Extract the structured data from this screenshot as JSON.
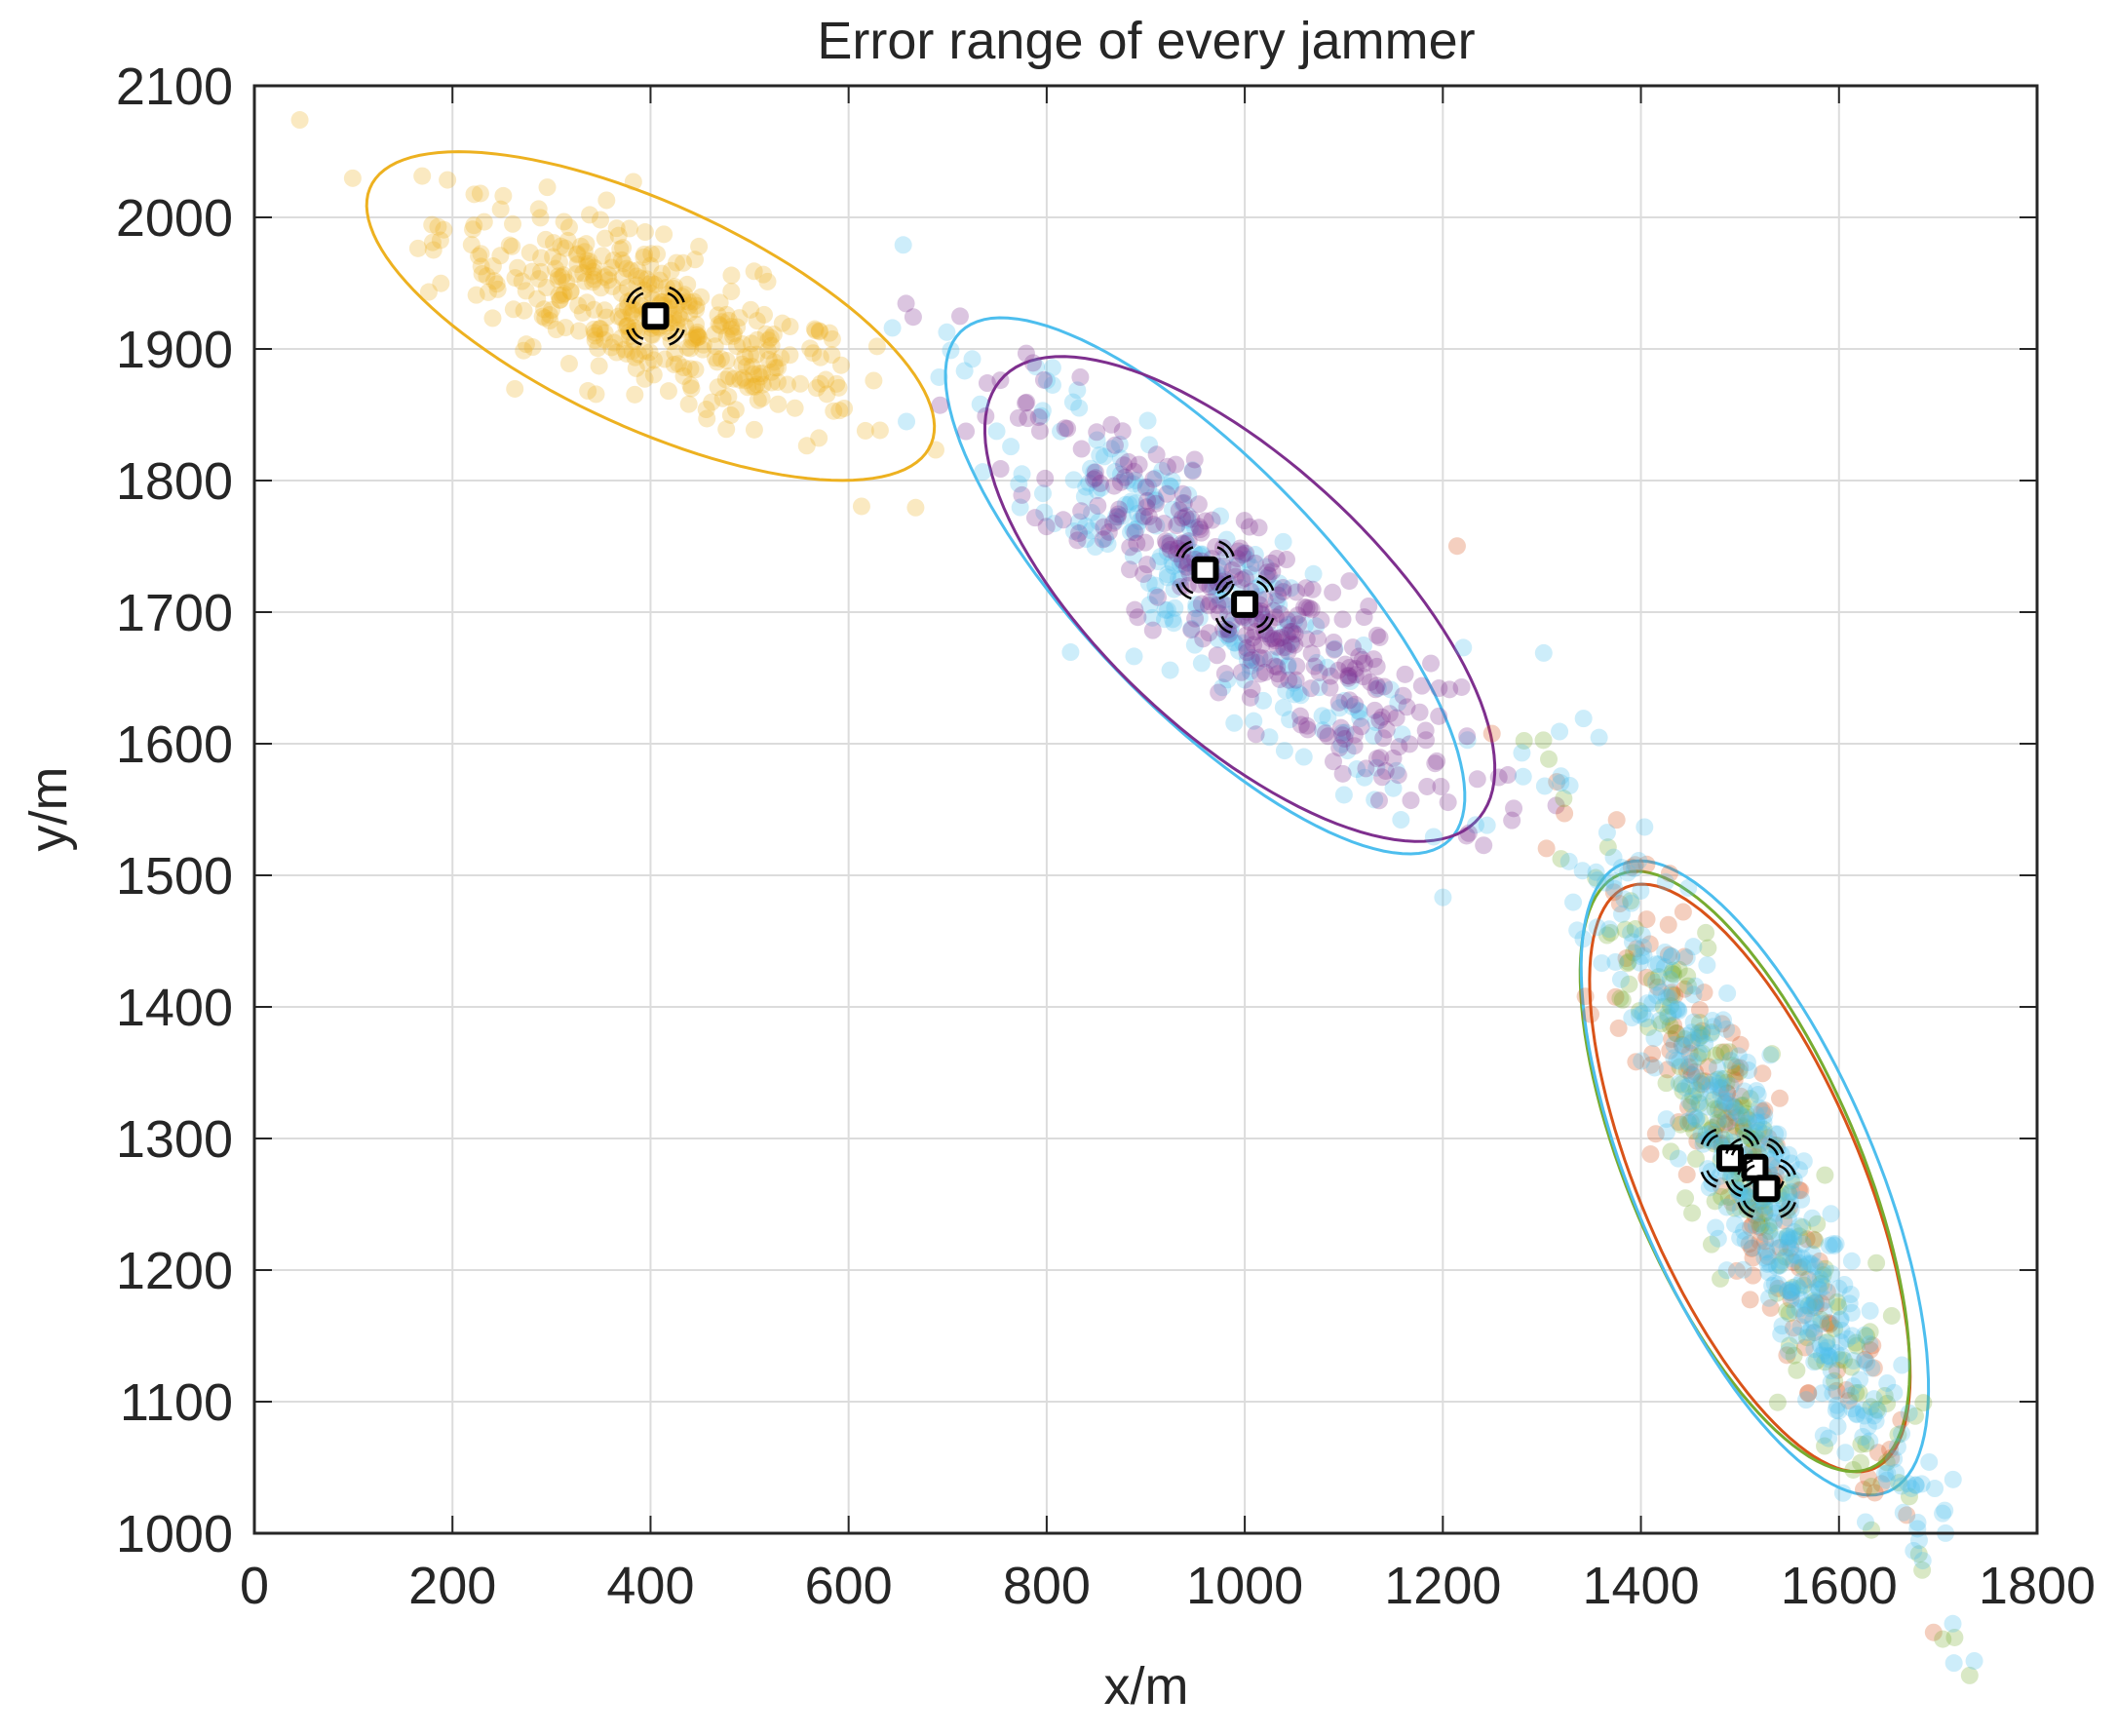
{
  "chart_data": {
    "type": "scatter",
    "title": "Error range of every jammer",
    "xlabel": "x/m",
    "ylabel": "y/m",
    "xlim": [
      0,
      1800
    ],
    "ylim": [
      1000,
      2100
    ],
    "xticks": [
      0,
      200,
      400,
      600,
      800,
      1000,
      1200,
      1400,
      1600,
      1800
    ],
    "yticks": [
      1000,
      1100,
      1200,
      1300,
      1400,
      1500,
      1600,
      1700,
      1800,
      1900,
      2000,
      2100
    ],
    "grid": true,
    "legend": "none",
    "clusters": [
      {
        "color": "#EDB120",
        "center": [
          400,
          1925
        ],
        "ellipse": {
          "a": 300,
          "b": 88,
          "angle_deg": -18
        },
        "spread": [
          110,
          28
        ],
        "n": 400
      },
      {
        "color": "#4DBEEE",
        "center": [
          960,
          1720
        ],
        "ellipse": {
          "a": 315,
          "b": 105,
          "angle_deg": -36
        },
        "spread": [
          140,
          30
        ],
        "n": 260
      },
      {
        "color": "#7E2F8E",
        "center": [
          995,
          1710
        ],
        "ellipse": {
          "a": 295,
          "b": 115,
          "angle_deg": -32
        },
        "spread": [
          135,
          30
        ],
        "n": 330
      },
      {
        "color": "#D95319",
        "center": [
          1510,
          1270
        ],
        "ellipse": {
          "a": 255,
          "b": 105,
          "angle_deg": -58
        },
        "spread": [
          150,
          24
        ],
        "n": 170
      },
      {
        "color": "#77AC30",
        "center": [
          1505,
          1275
        ],
        "ellipse": {
          "a": 260,
          "b": 110,
          "angle_deg": -58
        },
        "spread": [
          150,
          26
        ],
        "n": 200
      },
      {
        "color": "#4DBEEE",
        "center": [
          1515,
          1270
        ],
        "ellipse": {
          "a": 275,
          "b": 115,
          "angle_deg": -58
        },
        "spread": [
          150,
          24
        ],
        "n": 420
      }
    ],
    "jammers": [
      {
        "x": 405,
        "y": 1925
      },
      {
        "x": 960,
        "y": 1732
      },
      {
        "x": 1000,
        "y": 1706
      },
      {
        "x": 1490,
        "y": 1285
      },
      {
        "x": 1515,
        "y": 1278
      },
      {
        "x": 1527,
        "y": 1262
      }
    ]
  }
}
